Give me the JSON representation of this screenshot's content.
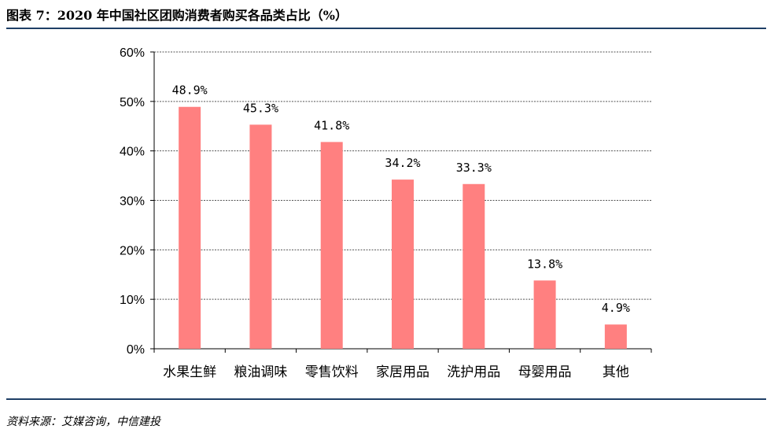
{
  "header": {
    "title": "图表 7：2020 年中国社区团购消费者购买各品类占比（%）"
  },
  "footer": {
    "source": "资料来源：艾媒咨询，中信建投"
  },
  "chart_data": {
    "type": "bar",
    "categories": [
      "水果生鲜",
      "粮油调味",
      "零售饮料",
      "家居用品",
      "洗护用品",
      "母婴用品",
      "其他"
    ],
    "values": [
      48.9,
      45.3,
      41.8,
      34.2,
      33.3,
      13.8,
      4.9
    ],
    "data_labels": [
      "48.9%",
      "45.3%",
      "41.8%",
      "34.2%",
      "33.3%",
      "13.8%",
      "4.9%"
    ],
    "yticks": [
      "0%",
      "10%",
      "20%",
      "30%",
      "40%",
      "50%",
      "60%"
    ],
    "ylim": [
      0,
      60
    ],
    "grid": true,
    "bar_color": "#ff8080"
  }
}
